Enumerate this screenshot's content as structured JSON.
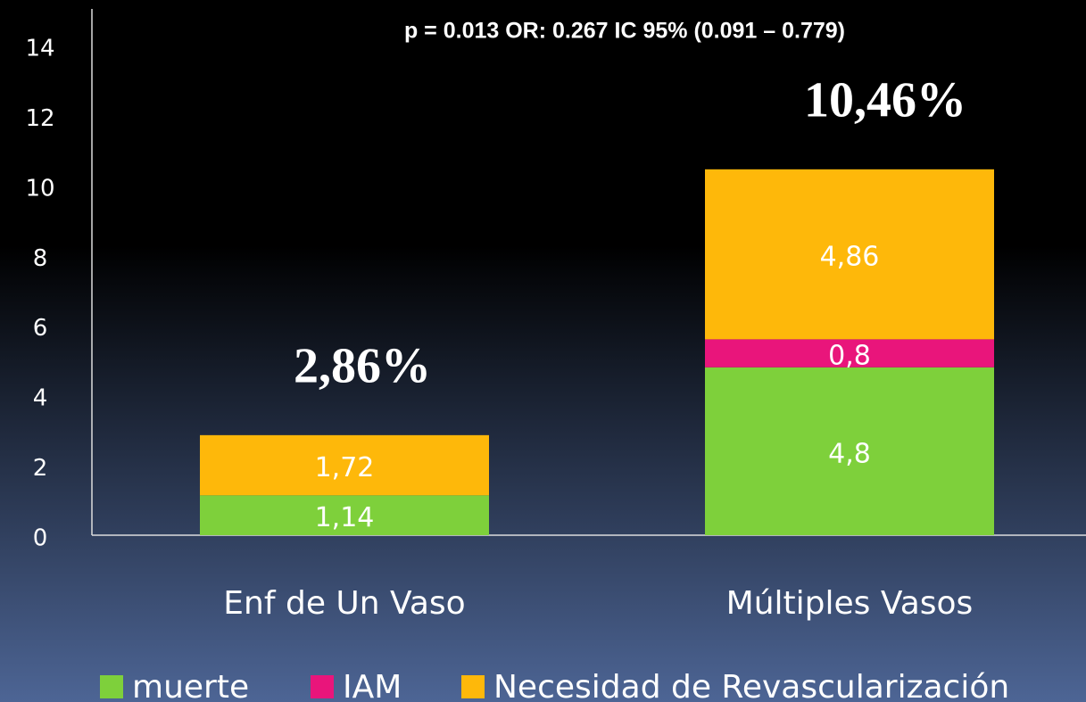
{
  "chart_data": {
    "type": "stacked_bar",
    "title": "p =  0.013  OR: 0.267  IC 95% (0.091 – 0.779)",
    "categories": [
      "Enf de Un Vaso",
      "Múltiples Vasos"
    ],
    "series": [
      {
        "name": "muerte",
        "color": "#7ed03b",
        "values": [
          1.14,
          4.8
        ],
        "value_labels": [
          "1,14",
          "4,8"
        ]
      },
      {
        "name": "IAM",
        "color": "#e9157b",
        "values": [
          null,
          0.8
        ],
        "value_labels": [
          null,
          "0,8"
        ]
      },
      {
        "name": "Necesidad de Revascularización",
        "color": "#feb80a",
        "values": [
          1.72,
          4.86
        ],
        "value_labels": [
          "1,72",
          "4,86"
        ]
      }
    ],
    "annotations": [
      "2,86%",
      "10,46%"
    ],
    "ylim": [
      0,
      14
    ],
    "yticks": [
      0,
      2,
      4,
      6,
      8,
      10,
      12,
      14
    ],
    "grid": false
  }
}
